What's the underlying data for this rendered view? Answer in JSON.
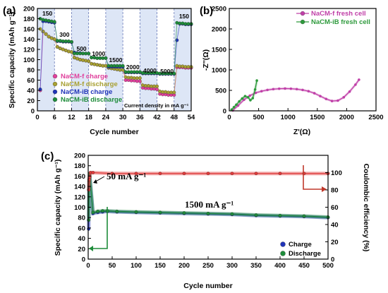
{
  "chart_data": [
    {
      "panel": "(a)",
      "type": "scatter",
      "xlabel": "Cycle number",
      "ylabel": "Specific capacity (mAh g⁻¹)",
      "xlim": [
        0,
        54
      ],
      "ylim": [
        0,
        200
      ],
      "xticks": [
        0,
        6,
        12,
        18,
        24,
        30,
        36,
        42,
        48,
        54
      ],
      "yticks": [
        0,
        20,
        40,
        60,
        80,
        100,
        120,
        140,
        160,
        180,
        200
      ],
      "note": "Current density in mA g⁻¹",
      "segments": [
        {
          "label": "150",
          "x": [
            1,
            6
          ]
        },
        {
          "label": "300",
          "x": [
            7,
            12
          ]
        },
        {
          "label": "500",
          "x": [
            13,
            18
          ]
        },
        {
          "label": "1000",
          "x": [
            19,
            24
          ]
        },
        {
          "label": "1500",
          "x": [
            25,
            30
          ]
        },
        {
          "label": "2000",
          "x": [
            31,
            36
          ]
        },
        {
          "label": "4000",
          "x": [
            37,
            42
          ]
        },
        {
          "label": "5000",
          "x": [
            43,
            48
          ]
        },
        {
          "label": "150",
          "x": [
            49,
            54
          ]
        }
      ],
      "series": [
        {
          "name": "NaCM-f charge",
          "color": "#e0409c",
          "values": [
            40,
            155,
            150,
            145,
            142,
            140,
            125,
            122,
            120,
            118,
            116,
            115,
            104,
            102,
            100,
            99,
            98,
            97,
            92,
            91,
            90,
            89,
            88,
            88,
            84,
            83,
            82,
            81,
            80,
            80,
            60,
            60,
            59,
            59,
            58,
            58,
            45,
            44,
            44,
            43,
            43,
            42,
            33,
            32,
            32,
            31,
            31,
            31,
            85,
            85,
            85,
            84,
            84,
            84
          ]
        },
        {
          "name": "NaCM-f discharge",
          "color": "#a8a032",
          "values": [
            160,
            155,
            150,
            145,
            142,
            140,
            125,
            122,
            120,
            118,
            116,
            115,
            104,
            102,
            100,
            99,
            98,
            97,
            92,
            91,
            90,
            89,
            88,
            88,
            84,
            83,
            82,
            81,
            80,
            80,
            66,
            65,
            65,
            64,
            64,
            64,
            50,
            49,
            49,
            48,
            48,
            48,
            38,
            37,
            37,
            36,
            36,
            36,
            88,
            87,
            87,
            86,
            86,
            86
          ]
        },
        {
          "name": "NaCM-iB charge",
          "color": "#2034b8",
          "values": [
            42,
            175,
            175,
            174,
            173,
            172,
            136,
            136,
            135,
            135,
            135,
            134,
            114,
            113,
            113,
            112,
            112,
            112,
            104,
            104,
            103,
            103,
            103,
            103,
            86,
            86,
            86,
            86,
            86,
            86,
            75,
            75,
            75,
            75,
            75,
            75,
            73,
            73,
            73,
            73,
            73,
            73,
            72,
            72,
            72,
            72,
            72,
            72,
            138,
            170,
            170,
            169,
            169,
            169
          ]
        },
        {
          "name": "NaCM-iB discharge",
          "color": "#1e8c3a",
          "values": [
            180,
            178,
            177,
            176,
            175,
            174,
            137,
            137,
            136,
            136,
            136,
            135,
            112,
            112,
            112,
            112,
            112,
            112,
            104,
            104,
            103,
            103,
            103,
            103,
            88,
            88,
            88,
            88,
            88,
            88,
            76,
            76,
            76,
            76,
            76,
            76,
            74,
            74,
            74,
            74,
            74,
            74,
            73,
            73,
            73,
            73,
            73,
            73,
            172,
            171,
            171,
            170,
            170,
            170
          ]
        }
      ]
    },
    {
      "panel": "(b)",
      "type": "line",
      "xlabel": "Z'(Ω)",
      "ylabel": "-Z''(Ω)",
      "xlim": [
        0,
        2500
      ],
      "ylim": [
        0,
        2500
      ],
      "xticks": [
        0,
        500,
        1000,
        1500,
        2000,
        2500
      ],
      "yticks": [
        0,
        500,
        1000,
        1500,
        2000,
        2500
      ],
      "series": [
        {
          "name": "NaCM-f fresh cell",
          "color": "#c040a8",
          "x": [
            60,
            150,
            250,
            350,
            450,
            550,
            650,
            750,
            850,
            950,
            1050,
            1150,
            1250,
            1350,
            1450,
            1550,
            1650,
            1750,
            1850,
            1950,
            2050,
            2150,
            2210
          ],
          "y": [
            10,
            130,
            270,
            370,
            440,
            480,
            510,
            530,
            540,
            545,
            540,
            530,
            510,
            480,
            430,
            360,
            290,
            240,
            250,
            330,
            470,
            640,
            760
          ]
        },
        {
          "name": "NaCM-iB fresh cell",
          "color": "#2e9a3c",
          "x": [
            40,
            80,
            120,
            170,
            220,
            270,
            320,
            360,
            400,
            440,
            470
          ],
          "y": [
            30,
            90,
            150,
            230,
            300,
            360,
            330,
            260,
            310,
            520,
            740
          ]
        }
      ]
    },
    {
      "panel": "(c)",
      "type": "scatter",
      "xlabel": "Cycle number",
      "ylabel": "Specific capacity (mAh g⁻¹)",
      "ylabel_right": "Coulombic efficiency (%)",
      "xlim": [
        0,
        500
      ],
      "ylim": [
        0,
        200
      ],
      "ylim_right": [
        0,
        120
      ],
      "xticks": [
        0,
        50,
        100,
        150,
        200,
        250,
        300,
        350,
        400,
        450,
        500
      ],
      "yticks": [
        0,
        20,
        40,
        60,
        80,
        100,
        120,
        140,
        160,
        180,
        200
      ],
      "yticks_right": [
        0,
        20,
        40,
        60,
        80,
        100
      ],
      "annotations": [
        "50 mA g⁻¹",
        "1500 mA g⁻¹"
      ],
      "series": [
        {
          "name": "Charge",
          "color": "#2034b8",
          "x": [
            1,
            2,
            3,
            10,
            20,
            30,
            40,
            60,
            100,
            150,
            200,
            250,
            300,
            350,
            400,
            450,
            500
          ],
          "y": [
            58,
            140,
            160,
            88,
            90,
            91,
            92,
            91,
            90,
            89,
            88,
            87,
            86,
            84,
            83,
            82,
            80
          ]
        },
        {
          "name": "Discharge",
          "color": "#1e8c3a",
          "x": [
            1,
            2,
            3,
            10,
            20,
            30,
            40,
            60,
            100,
            150,
            200,
            250,
            300,
            350,
            400,
            450,
            500
          ],
          "y": [
            75,
            150,
            165,
            90,
            92,
            93,
            93,
            92,
            91,
            90,
            89,
            88,
            87,
            85,
            84,
            83,
            81
          ]
        },
        {
          "name": "Coulombic efficiency",
          "axis": "right",
          "color": "#e03a3a",
          "x": [
            1,
            2,
            3,
            5,
            10,
            50,
            100,
            150,
            200,
            250,
            300,
            350,
            400,
            450,
            500
          ],
          "y": [
            80,
            92,
            95,
            100,
            100,
            99,
            99,
            99,
            99,
            99,
            99,
            99,
            99,
            99,
            99
          ]
        }
      ]
    }
  ]
}
